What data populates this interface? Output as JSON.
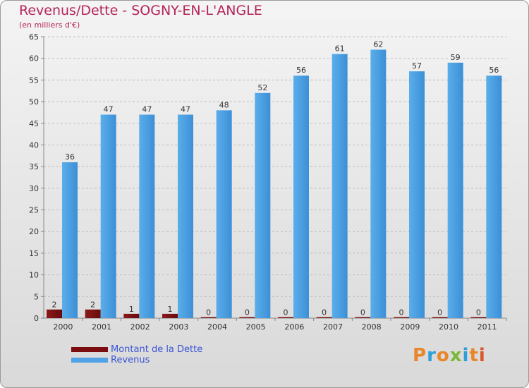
{
  "title": "Revenus/Dette - SOGNY-EN-L'ANGLE",
  "subtitle": "(en milliers d'€)",
  "logo": "Proxiti",
  "colors": {
    "dette": "#7a0d10",
    "revenus": "#4fa3e6",
    "title": "#b5245a",
    "legend": "#3a55d6"
  },
  "chart_data": {
    "type": "bar",
    "title": "Revenus/Dette - SOGNY-EN-L'ANGLE",
    "ylabel": "(en milliers d'€)",
    "xlabel": "",
    "ylim": [
      0,
      65
    ],
    "yticks": [
      0,
      5,
      10,
      15,
      20,
      25,
      30,
      35,
      40,
      45,
      50,
      55,
      60,
      65
    ],
    "categories": [
      "2000",
      "2001",
      "2002",
      "2003",
      "2004",
      "2005",
      "2006",
      "2007",
      "2008",
      "2009",
      "2010",
      "2011"
    ],
    "series": [
      {
        "name": "Montant de la Dette",
        "values": [
          2,
          2,
          1,
          1,
          0,
          0,
          0,
          0,
          0,
          0,
          0,
          0
        ]
      },
      {
        "name": "Revenus",
        "values": [
          36,
          47,
          47,
          47,
          48,
          52,
          56,
          61,
          62,
          57,
          59,
          56
        ]
      }
    ],
    "legend": "bottom-left",
    "grid": true
  }
}
